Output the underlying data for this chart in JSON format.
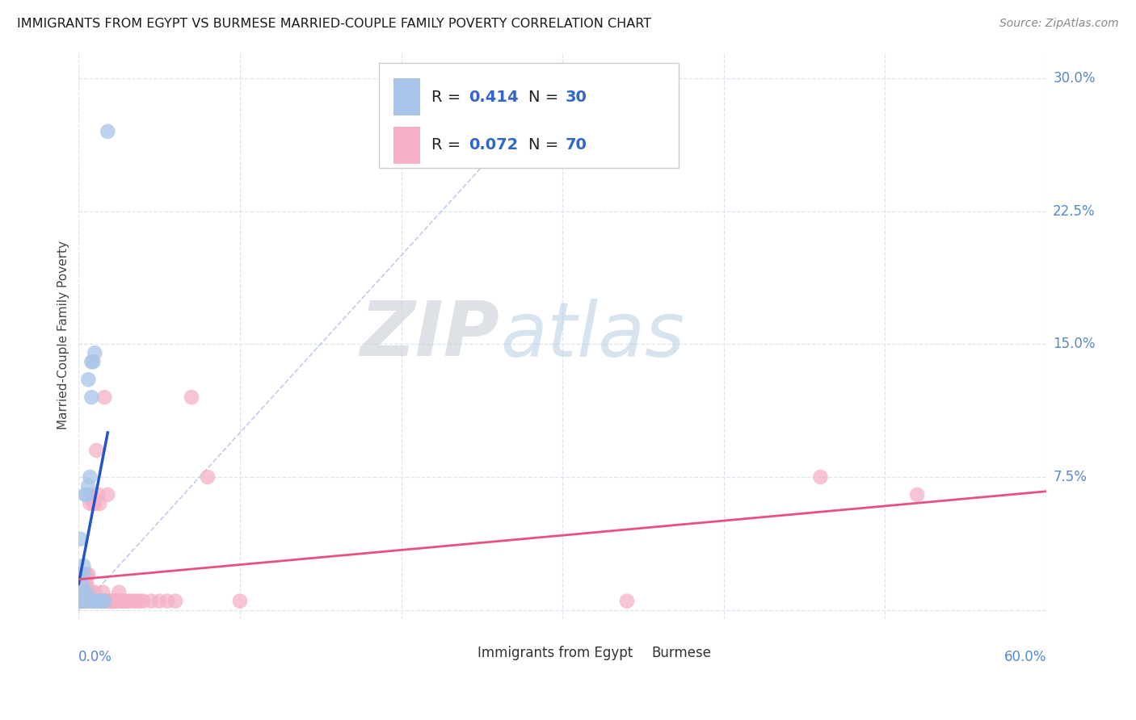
{
  "title": "IMMIGRANTS FROM EGYPT VS BURMESE MARRIED-COUPLE FAMILY POVERTY CORRELATION CHART",
  "source": "Source: ZipAtlas.com",
  "ylabel": "Married-Couple Family Poverty",
  "xlim": [
    0.0,
    0.6
  ],
  "ylim": [
    -0.005,
    0.315
  ],
  "yticks": [
    0.0,
    0.075,
    0.15,
    0.225,
    0.3
  ],
  "ytick_labels": [
    "",
    "7.5%",
    "15.0%",
    "22.5%",
    "30.0%"
  ],
  "xtick_positions": [
    0.0,
    0.1,
    0.2,
    0.3,
    0.4,
    0.5,
    0.6
  ],
  "blue_series": {
    "name": "Immigrants from Egypt",
    "color": "#a8c4e8",
    "R": "0.414",
    "N": "30",
    "x": [
      0.001,
      0.001,
      0.002,
      0.002,
      0.002,
      0.003,
      0.003,
      0.003,
      0.003,
      0.004,
      0.004,
      0.005,
      0.005,
      0.005,
      0.006,
      0.006,
      0.007,
      0.007,
      0.008,
      0.008,
      0.009,
      0.009,
      0.01,
      0.01,
      0.011,
      0.012,
      0.013,
      0.015,
      0.016,
      0.018
    ],
    "y": [
      0.02,
      0.04,
      0.005,
      0.01,
      0.015,
      0.005,
      0.01,
      0.02,
      0.025,
      0.005,
      0.065,
      0.005,
      0.01,
      0.065,
      0.07,
      0.13,
      0.005,
      0.075,
      0.12,
      0.14,
      0.005,
      0.14,
      0.005,
      0.145,
      0.005,
      0.005,
      0.005,
      0.005,
      0.005,
      0.27
    ]
  },
  "pink_series": {
    "name": "Burmese",
    "color": "#f5b0c5",
    "R": "0.072",
    "N": "70",
    "x": [
      0.001,
      0.001,
      0.001,
      0.002,
      0.002,
      0.002,
      0.003,
      0.003,
      0.003,
      0.004,
      0.004,
      0.004,
      0.004,
      0.005,
      0.005,
      0.005,
      0.005,
      0.006,
      0.006,
      0.006,
      0.007,
      0.007,
      0.008,
      0.008,
      0.008,
      0.009,
      0.009,
      0.01,
      0.01,
      0.01,
      0.011,
      0.011,
      0.012,
      0.012,
      0.013,
      0.013,
      0.014,
      0.014,
      0.015,
      0.015,
      0.016,
      0.016,
      0.017,
      0.018,
      0.018,
      0.019,
      0.02,
      0.021,
      0.022,
      0.023,
      0.025,
      0.025,
      0.027,
      0.028,
      0.03,
      0.032,
      0.034,
      0.036,
      0.038,
      0.04,
      0.045,
      0.05,
      0.055,
      0.06,
      0.07,
      0.08,
      0.1,
      0.34,
      0.46,
      0.52
    ],
    "y": [
      0.005,
      0.01,
      0.02,
      0.005,
      0.01,
      0.02,
      0.005,
      0.01,
      0.015,
      0.005,
      0.01,
      0.015,
      0.02,
      0.005,
      0.01,
      0.015,
      0.02,
      0.005,
      0.01,
      0.02,
      0.005,
      0.06,
      0.005,
      0.01,
      0.065,
      0.005,
      0.06,
      0.005,
      0.01,
      0.06,
      0.005,
      0.09,
      0.005,
      0.065,
      0.005,
      0.06,
      0.005,
      0.005,
      0.005,
      0.01,
      0.005,
      0.12,
      0.005,
      0.005,
      0.065,
      0.005,
      0.005,
      0.005,
      0.005,
      0.005,
      0.005,
      0.01,
      0.005,
      0.005,
      0.005,
      0.005,
      0.005,
      0.005,
      0.005,
      0.005,
      0.005,
      0.005,
      0.005,
      0.005,
      0.12,
      0.075,
      0.005,
      0.005,
      0.075,
      0.065
    ]
  },
  "blue_line_color": "#2255cc",
  "pink_line_color": "#e85080",
  "diag_line_color": "#b8c8e8",
  "watermark_zip": "ZIP",
  "watermark_atlas": "atlas",
  "background_color": "#ffffff",
  "grid_color": "#dde4f0",
  "legend_blue_text_color": "#3366cc",
  "legend_label_color": "#222222",
  "axis_label_color": "#5588cc",
  "source_color": "#888888"
}
